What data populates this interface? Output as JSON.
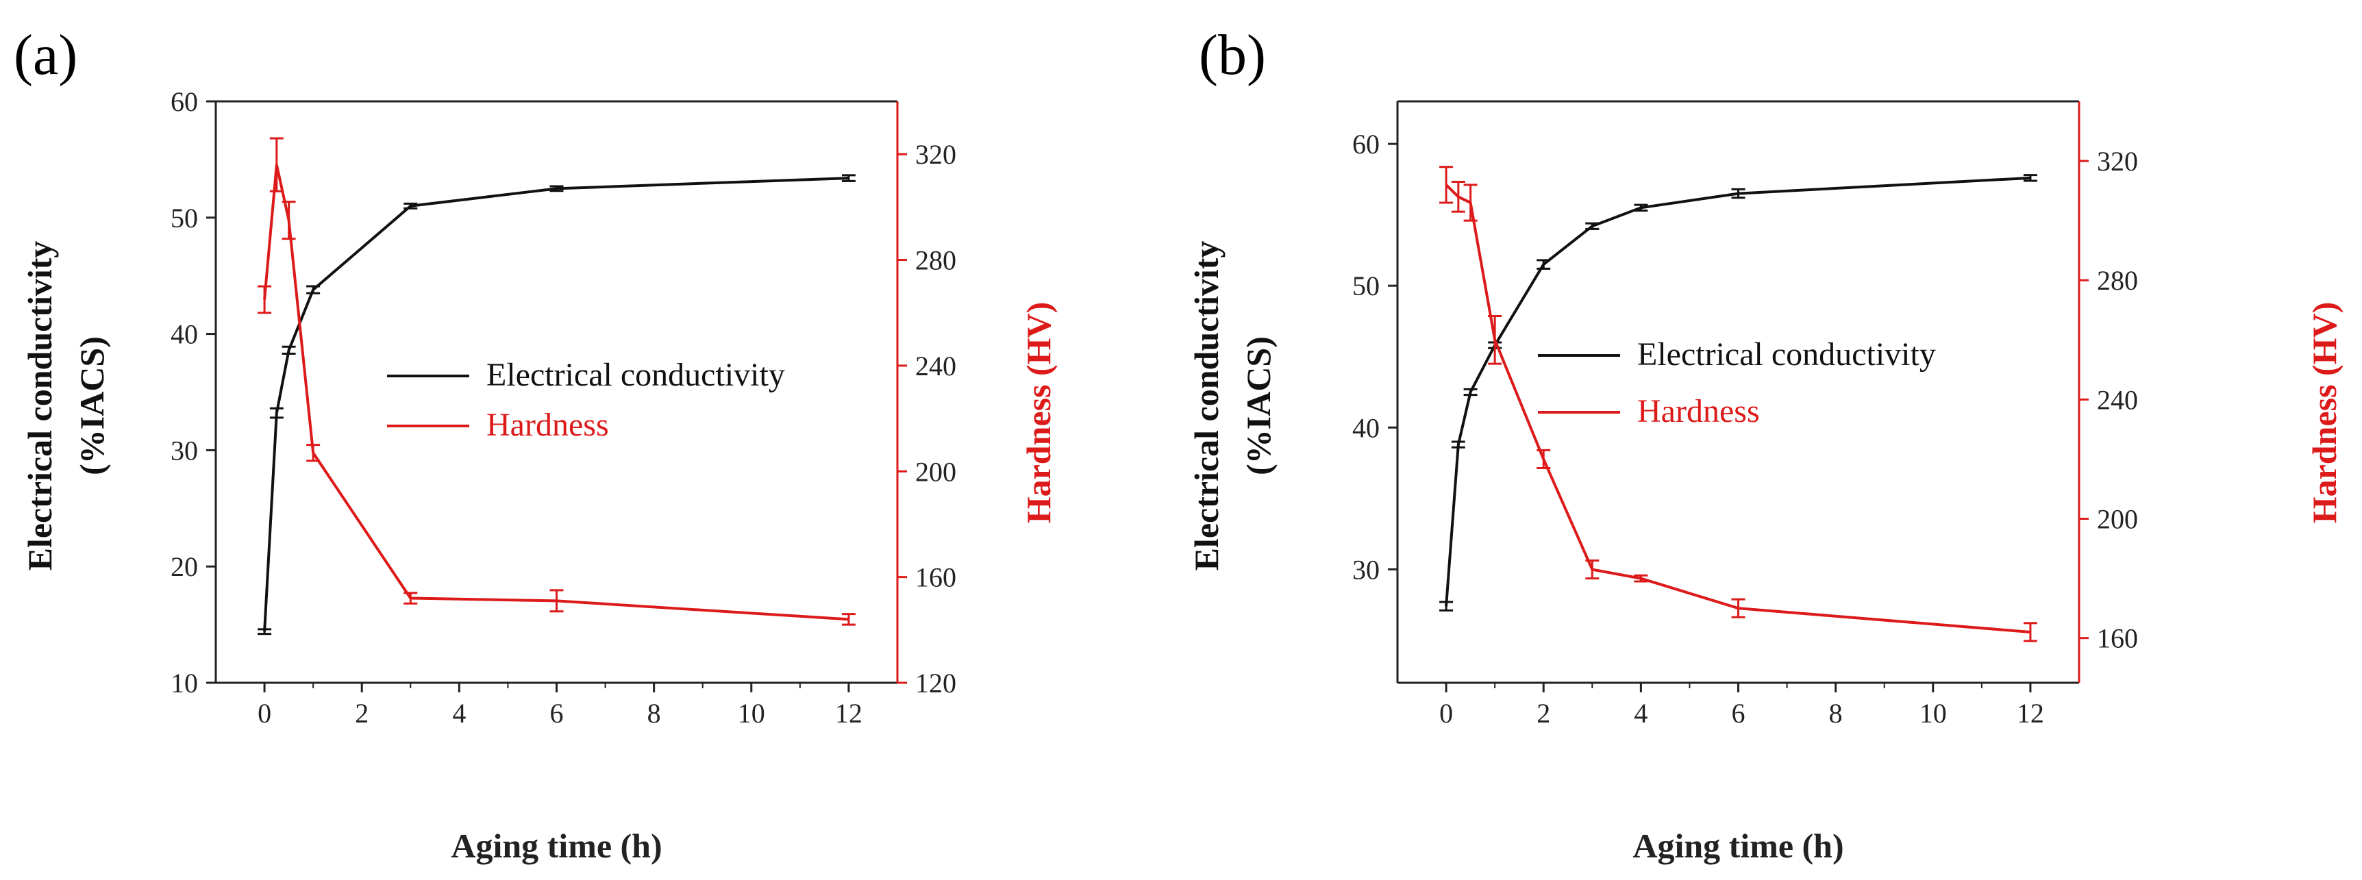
{
  "colors": {
    "conductivity": "#111111",
    "hardness": "#dd1a1a",
    "axis": "#222222"
  },
  "chart_data": [
    {
      "panel_label": "(a)",
      "type": "line",
      "xlabel": "Aging time (h)",
      "ylabel_line1": "Electrical conductivity",
      "ylabel_line2": "(%IACS)",
      "y2label": "Hardness (HV)",
      "xlim": [
        -1,
        13
      ],
      "ylim": [
        10,
        60
      ],
      "y2lim": [
        120,
        340
      ],
      "xticks": [
        0,
        2,
        4,
        6,
        8,
        10,
        12
      ],
      "yticks": [
        10,
        20,
        30,
        40,
        50,
        60
      ],
      "y2ticks": [
        120,
        160,
        200,
        240,
        280,
        320
      ],
      "series": [
        {
          "name": "Electrical conductivity",
          "axis": "left",
          "x": [
            0,
            0.25,
            0.5,
            1,
            3,
            6,
            12
          ],
          "values": [
            14.4,
            33.2,
            38.6,
            43.8,
            51.0,
            52.5,
            53.4
          ],
          "errors": [
            0.2,
            0.4,
            0.3,
            0.3,
            0.2,
            0.2,
            0.25
          ]
        },
        {
          "name": "Hardness",
          "axis": "right",
          "x": [
            0,
            0.25,
            0.5,
            1,
            3,
            6,
            12
          ],
          "values": [
            265,
            316,
            295,
            207,
            152,
            151,
            144
          ],
          "errors": [
            5,
            10,
            7,
            3,
            2,
            4,
            2
          ]
        }
      ]
    },
    {
      "panel_label": "(b)",
      "type": "line",
      "xlabel": "Aging time (h)",
      "ylabel_line1": "Electrical conductivity",
      "ylabel_line2": "(%IACS)",
      "y2label": "Hardness (HV)",
      "xlim": [
        -1,
        13
      ],
      "ylim": [
        22,
        63
      ],
      "y2lim": [
        145,
        340
      ],
      "xticks": [
        0,
        2,
        4,
        6,
        8,
        10,
        12
      ],
      "yticks": [
        30,
        40,
        50,
        60
      ],
      "y2ticks": [
        160,
        200,
        240,
        280,
        320
      ],
      "series": [
        {
          "name": "Electrical conductivity",
          "axis": "left",
          "x": [
            0,
            0.25,
            0.5,
            1,
            2,
            3,
            4,
            6,
            12
          ],
          "values": [
            27.4,
            38.8,
            42.5,
            45.8,
            51.5,
            54.2,
            55.5,
            56.5,
            57.6
          ],
          "errors": [
            0.3,
            0.2,
            0.2,
            0.2,
            0.3,
            0.2,
            0.2,
            0.3,
            0.2
          ]
        },
        {
          "name": "Hardness",
          "axis": "right",
          "x": [
            0,
            0.25,
            0.5,
            1,
            2,
            3,
            4,
            6,
            12
          ],
          "values": [
            312,
            308,
            306,
            260,
            220,
            183,
            180,
            170,
            162
          ],
          "errors": [
            6,
            5,
            6,
            8,
            3,
            3,
            1,
            3,
            3
          ]
        }
      ]
    }
  ]
}
